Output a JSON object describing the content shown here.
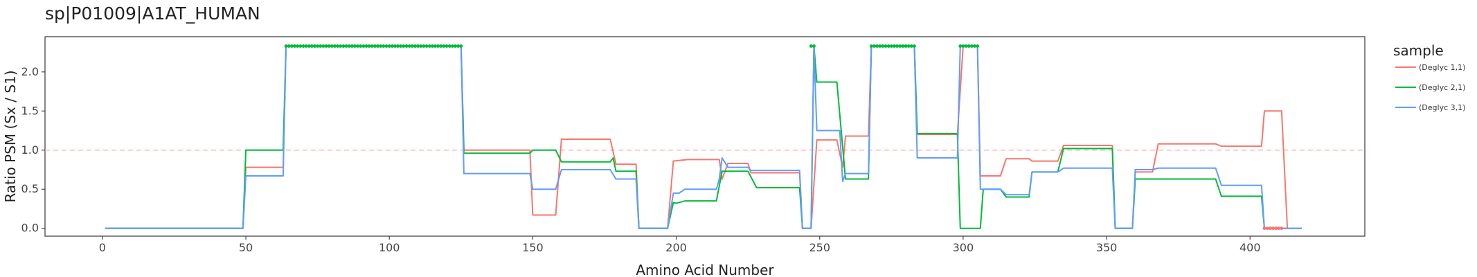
{
  "chart_data": {
    "type": "line",
    "title": "sp|P01009|A1AT_HUMAN",
    "xlabel": "Amino Acid Number",
    "ylabel": "Ratio PSM (Sx / S1)",
    "xlim": [
      -20,
      440
    ],
    "ylim": [
      -0.1,
      2.45
    ],
    "x_ticks": [
      0,
      50,
      100,
      150,
      200,
      250,
      300,
      350,
      400
    ],
    "y_ticks": [
      0.0,
      0.5,
      1.0,
      1.5,
      2.0
    ],
    "y_tick_labels": [
      "0.0",
      "0.5",
      "1.0",
      "1.5",
      "2.0"
    ],
    "reference_line": {
      "y": 1.0,
      "color": "#ffb3b3",
      "style": "dashed"
    },
    "grid": false,
    "legend": {
      "title": "sample",
      "position": "right"
    },
    "series": [
      {
        "name": "(Deglyc 1,1)",
        "color": "#f8766d",
        "points": [
          [
            1,
            0
          ],
          [
            49,
            0
          ],
          [
            50,
            0.78
          ],
          [
            63,
            0.78
          ],
          [
            64,
            2.33
          ],
          [
            125,
            2.33
          ],
          [
            126,
            1.0
          ],
          [
            149,
            1.0
          ],
          [
            150,
            0.17
          ],
          [
            158,
            0.17
          ],
          [
            160,
            1.14
          ],
          [
            177,
            1.14
          ],
          [
            179,
            0.82
          ],
          [
            186,
            0.82
          ],
          [
            187,
            0
          ],
          [
            197,
            0
          ],
          [
            199,
            0.86
          ],
          [
            204,
            0.88
          ],
          [
            215,
            0.88
          ],
          [
            216,
            0.63
          ],
          [
            218,
            0.83
          ],
          [
            225,
            0.83
          ],
          [
            226,
            0.71
          ],
          [
            243,
            0.71
          ],
          [
            244,
            0
          ],
          [
            247,
            0
          ],
          [
            249,
            1.13
          ],
          [
            256,
            1.13
          ],
          [
            258,
            0.78
          ],
          [
            259,
            1.18
          ],
          [
            267,
            1.18
          ],
          [
            268,
            2.33
          ],
          [
            283,
            2.33
          ],
          [
            284,
            1.2
          ],
          [
            298,
            1.2
          ],
          [
            300,
            2.33
          ],
          [
            305,
            2.33
          ],
          [
            306,
            0.67
          ],
          [
            313,
            0.67
          ],
          [
            315,
            0.89
          ],
          [
            323,
            0.89
          ],
          [
            324,
            0.86
          ],
          [
            333,
            0.86
          ],
          [
            335,
            1.06
          ],
          [
            352,
            1.06
          ],
          [
            353,
            0
          ],
          [
            359,
            0
          ],
          [
            360,
            0.72
          ],
          [
            366,
            0.72
          ],
          [
            368,
            1.08
          ],
          [
            388,
            1.08
          ],
          [
            390,
            1.05
          ],
          [
            404,
            1.05
          ],
          [
            405,
            1.5
          ],
          [
            411,
            1.5
          ],
          [
            413,
            0
          ]
        ],
        "markers": [
          {
            "x_from": 405,
            "x_to": 411,
            "y": 0
          }
        ]
      },
      {
        "name": "(Deglyc 2,1)",
        "color": "#00ba38",
        "points": [
          [
            1,
            0
          ],
          [
            49,
            0
          ],
          [
            50,
            1.0
          ],
          [
            63,
            1.0
          ],
          [
            64,
            2.33
          ],
          [
            125,
            2.33
          ],
          [
            126,
            0.96
          ],
          [
            149,
            0.96
          ],
          [
            150,
            1.0
          ],
          [
            158,
            1.0
          ],
          [
            160,
            0.85
          ],
          [
            177,
            0.85
          ],
          [
            178,
            0.9
          ],
          [
            179,
            0.73
          ],
          [
            186,
            0.73
          ],
          [
            187,
            0
          ],
          [
            197,
            0
          ],
          [
            199,
            0.33
          ],
          [
            200,
            0.32
          ],
          [
            203,
            0.35
          ],
          [
            214,
            0.35
          ],
          [
            216,
            0.73
          ],
          [
            225,
            0.73
          ],
          [
            228,
            0.52
          ],
          [
            243,
            0.52
          ],
          [
            244,
            0
          ],
          [
            247,
            0
          ],
          [
            248,
            2.33
          ],
          [
            249,
            1.87
          ],
          [
            256,
            1.87
          ],
          [
            259,
            0.63
          ],
          [
            267,
            0.63
          ],
          [
            268,
            2.33
          ],
          [
            283,
            2.33
          ],
          [
            284,
            1.21
          ],
          [
            298,
            1.21
          ],
          [
            299,
            0
          ],
          [
            306,
            0
          ],
          [
            307,
            0.5
          ],
          [
            313,
            0.5
          ],
          [
            315,
            0.4
          ],
          [
            323,
            0.4
          ],
          [
            324,
            0.72
          ],
          [
            333,
            0.72
          ],
          [
            335,
            1.02
          ],
          [
            352,
            1.02
          ],
          [
            353,
            0
          ],
          [
            359,
            0
          ],
          [
            360,
            0.63
          ],
          [
            388,
            0.63
          ],
          [
            390,
            0.41
          ],
          [
            404,
            0.41
          ],
          [
            405,
            0
          ],
          [
            418,
            0
          ]
        ],
        "markers": [
          {
            "x_from": 64,
            "x_to": 125,
            "y": 2.33
          },
          {
            "x_from": 247,
            "x_to": 248,
            "y": 2.33
          },
          {
            "x_from": 268,
            "x_to": 283,
            "y": 2.33
          },
          {
            "x_from": 299,
            "x_to": 305,
            "y": 2.33
          }
        ]
      },
      {
        "name": "(Deglyc 3,1)",
        "color": "#619cff",
        "points": [
          [
            1,
            0
          ],
          [
            49,
            0
          ],
          [
            50,
            0.67
          ],
          [
            63,
            0.67
          ],
          [
            64,
            2.33
          ],
          [
            125,
            2.33
          ],
          [
            126,
            0.7
          ],
          [
            149,
            0.7
          ],
          [
            150,
            0.5
          ],
          [
            158,
            0.5
          ],
          [
            160,
            0.75
          ],
          [
            177,
            0.75
          ],
          [
            179,
            0.63
          ],
          [
            186,
            0.63
          ],
          [
            187,
            0
          ],
          [
            197,
            0
          ],
          [
            199,
            0.45
          ],
          [
            201,
            0.45
          ],
          [
            203,
            0.5
          ],
          [
            214,
            0.5
          ],
          [
            215,
            0.63
          ],
          [
            216,
            0.9
          ],
          [
            218,
            0.78
          ],
          [
            225,
            0.78
          ],
          [
            226,
            0.74
          ],
          [
            243,
            0.74
          ],
          [
            244,
            0
          ],
          [
            247,
            0
          ],
          [
            248,
            2.33
          ],
          [
            249,
            1.25
          ],
          [
            257,
            1.25
          ],
          [
            258,
            0.6
          ],
          [
            259,
            0.7
          ],
          [
            267,
            0.7
          ],
          [
            268,
            2.33
          ],
          [
            283,
            2.33
          ],
          [
            284,
            0.9
          ],
          [
            298,
            0.9
          ],
          [
            299,
            2.33
          ],
          [
            305,
            2.33
          ],
          [
            306,
            0.5
          ],
          [
            313,
            0.5
          ],
          [
            315,
            0.43
          ],
          [
            323,
            0.43
          ],
          [
            324,
            0.72
          ],
          [
            333,
            0.72
          ],
          [
            335,
            0.77
          ],
          [
            352,
            0.77
          ],
          [
            353,
            0
          ],
          [
            359,
            0
          ],
          [
            360,
            0.75
          ],
          [
            366,
            0.75
          ],
          [
            368,
            0.77
          ],
          [
            388,
            0.77
          ],
          [
            390,
            0.55
          ],
          [
            404,
            0.55
          ],
          [
            405,
            0
          ],
          [
            418,
            0
          ]
        ],
        "markers": []
      }
    ]
  }
}
